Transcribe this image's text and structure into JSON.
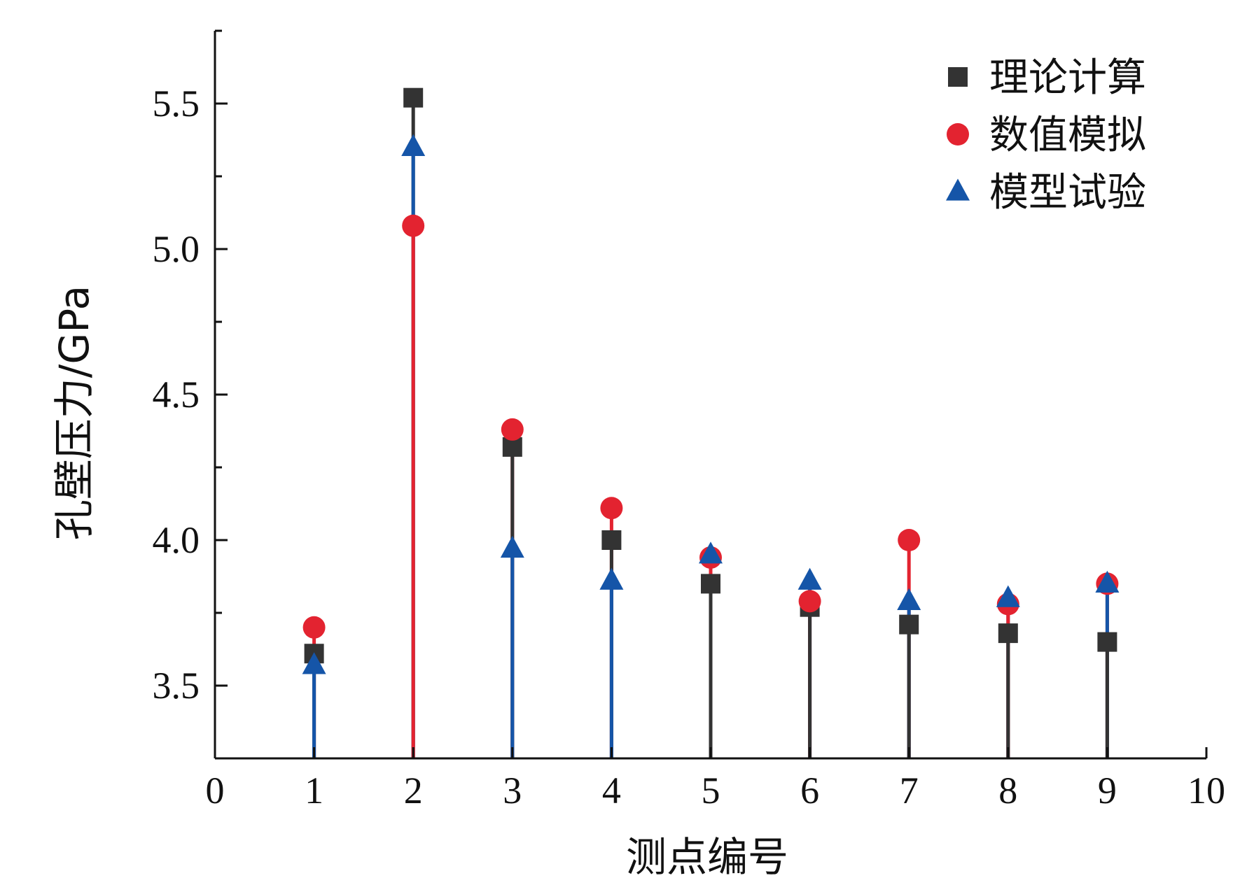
{
  "chart_data": {
    "type": "scatter",
    "xlabel": "测点编号",
    "ylabel": "孔壁压力/GPa",
    "xlim": [
      0,
      10
    ],
    "ylim": [
      3.25,
      5.75
    ],
    "xticks": [
      "0",
      "1",
      "2",
      "3",
      "4",
      "5",
      "6",
      "7",
      "8",
      "9",
      "10"
    ],
    "yticks": [
      "3.5",
      "4.0",
      "4.5",
      "5.0",
      "5.5"
    ],
    "x": [
      1,
      2,
      3,
      4,
      5,
      6,
      7,
      8,
      9
    ],
    "grid": false,
    "legend_position": "top-right",
    "series": [
      {
        "name": "理论计算",
        "marker": "square",
        "color": "#333333",
        "values": [
          3.61,
          5.52,
          4.32,
          4.0,
          3.85,
          3.77,
          3.71,
          3.68,
          3.65
        ]
      },
      {
        "name": "数值模拟",
        "marker": "circle",
        "color": "#e32330",
        "values": [
          3.7,
          5.08,
          4.38,
          4.11,
          3.94,
          3.79,
          4.0,
          3.78,
          3.85
        ]
      },
      {
        "name": "模型试验",
        "marker": "triangle",
        "color": "#1555a8",
        "values": [
          3.57,
          5.35,
          3.97,
          3.86,
          3.95,
          3.86,
          3.79,
          3.8,
          3.85
        ]
      }
    ]
  }
}
